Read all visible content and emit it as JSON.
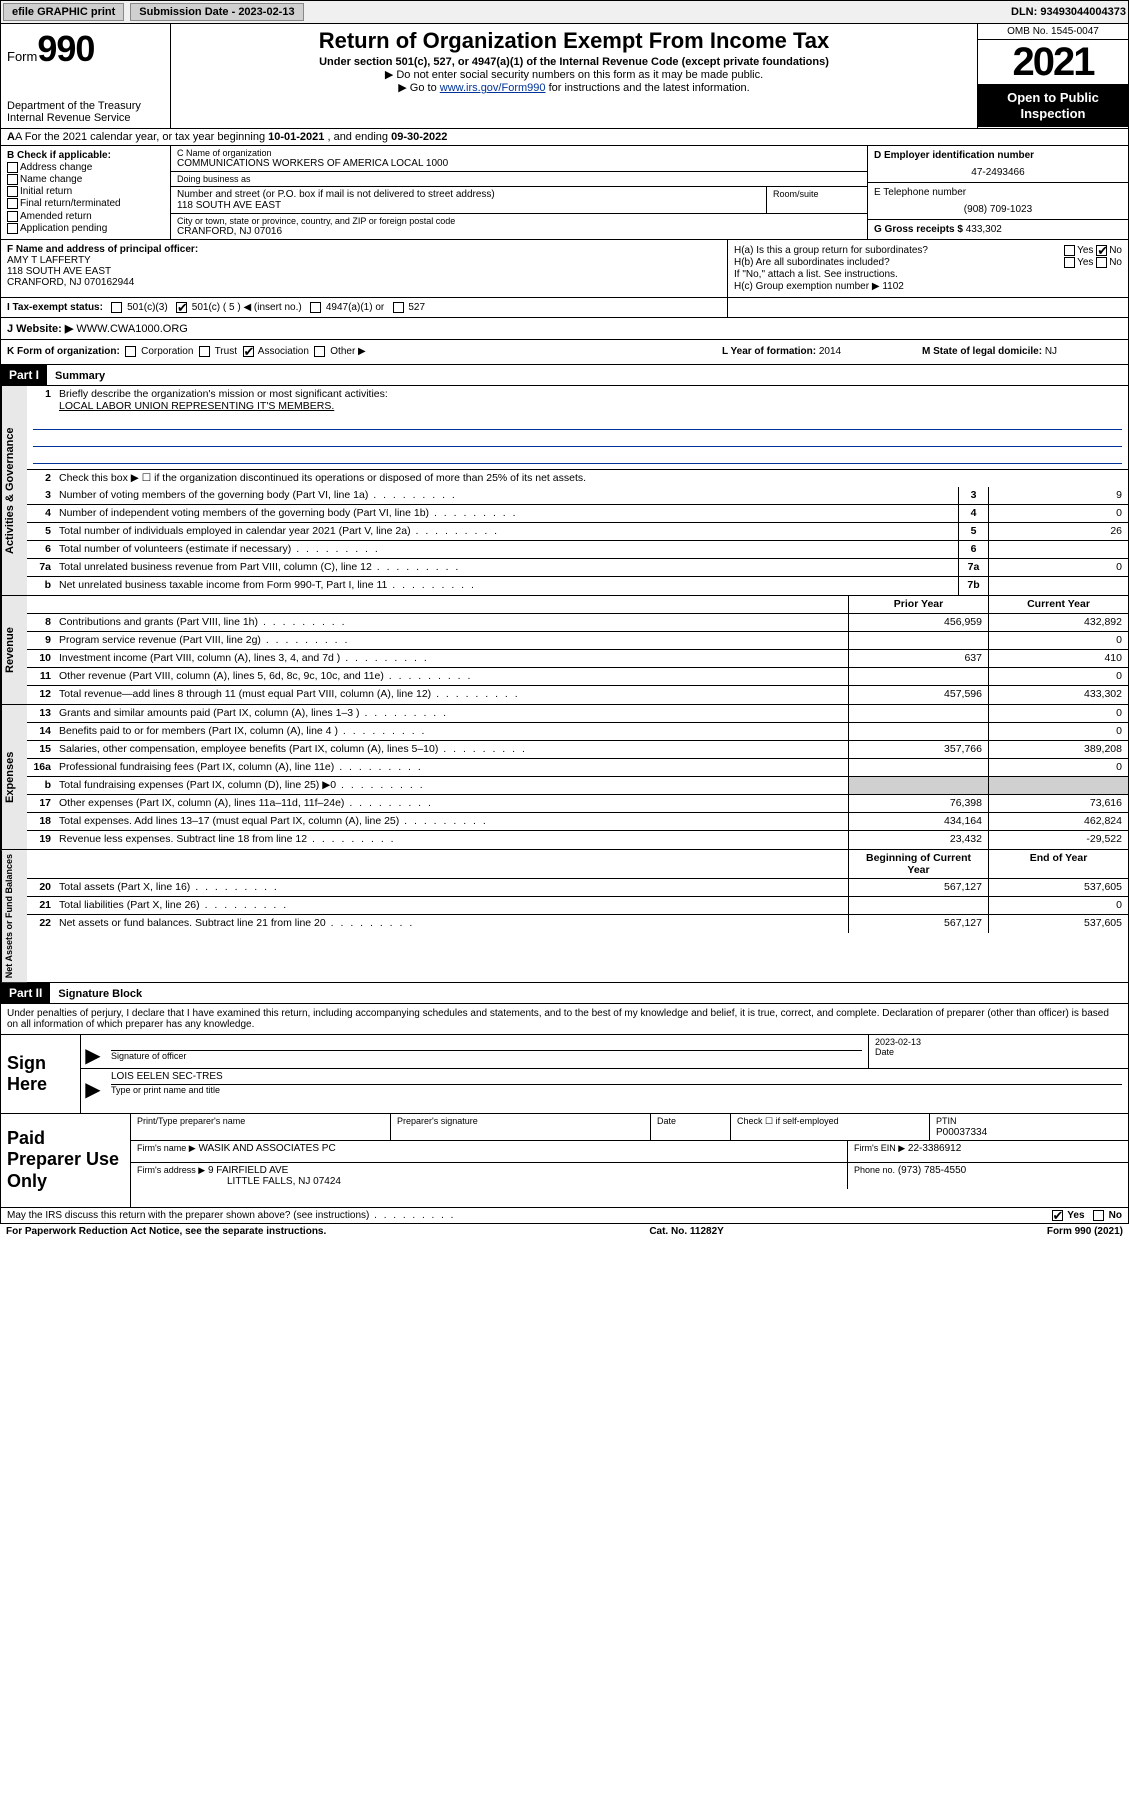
{
  "topbar": {
    "efile": "efile GRAPHIC print",
    "sub_label": "Submission Date - 2023-02-13",
    "dln": "DLN: 93493044004373"
  },
  "header": {
    "form_prefix": "Form",
    "form_no": "990",
    "dept": "Department of the Treasury",
    "irs": "Internal Revenue Service",
    "title": "Return of Organization Exempt From Income Tax",
    "sub1": "Under section 501(c), 527, or 4947(a)(1) of the Internal Revenue Code (except private foundations)",
    "sub2": "▶ Do not enter social security numbers on this form as it may be made public.",
    "sub3_pre": "▶ Go to ",
    "sub3_link": "www.irs.gov/Form990",
    "sub3_post": " for instructions and the latest information.",
    "omb": "OMB No. 1545-0047",
    "year": "2021",
    "open1": "Open to Public",
    "open2": "Inspection"
  },
  "rowA": {
    "text_pre": "A For the 2021 calendar year, or tax year beginning ",
    "begin": "10-01-2021",
    "mid": " , and ending ",
    "end": "09-30-2022"
  },
  "colB": {
    "hdr": "B Check if applicable:",
    "opts": [
      "Address change",
      "Name change",
      "Initial return",
      "Final return/terminated",
      "Amended return",
      "Application pending"
    ]
  },
  "colC": {
    "name_lbl": "C Name of organization",
    "name": "COMMUNICATIONS WORKERS OF AMERICA LOCAL 1000",
    "dba_lbl": "Doing business as",
    "dba": "",
    "street_lbl": "Number and street (or P.O. box if mail is not delivered to street address)",
    "street": "118 SOUTH AVE EAST",
    "room_lbl": "Room/suite",
    "city_lbl": "City or town, state or province, country, and ZIP or foreign postal code",
    "city": "CRANFORD, NJ  07016"
  },
  "colD": {
    "lbl": "D Employer identification number",
    "val": "47-2493466"
  },
  "colE": {
    "lbl": "E Telephone number",
    "val": "(908) 709-1023"
  },
  "colG": {
    "lbl": "G Gross receipts $ ",
    "val": "433,302"
  },
  "colF": {
    "lbl": "F Name and address of principal officer:",
    "name": "AMY T LAFFERTY",
    "addr1": "118 SOUTH AVE EAST",
    "addr2": "CRANFORD, NJ  070162944"
  },
  "colH": {
    "a_lbl": "H(a)  Is this a group return for subordinates?",
    "a_yes": "Yes",
    "a_no": "No",
    "b_lbl": "H(b)  Are all subordinates included?",
    "b_note": "If \"No,\" attach a list. See instructions.",
    "c_lbl": "H(c)  Group exemption number ▶",
    "c_val": "1102"
  },
  "rowI": {
    "lbl": "I   Tax-exempt status:",
    "o1": "501(c)(3)",
    "o2": "501(c) ( 5 ) ◀ (insert no.)",
    "o3": "4947(a)(1) or",
    "o4": "527"
  },
  "rowJ": {
    "lbl": "J   Website: ▶",
    "val": "WWW.CWA1000.ORG"
  },
  "rowK": {
    "lbl": "K Form of organization:",
    "o1": "Corporation",
    "o2": "Trust",
    "o3": "Association",
    "o4": "Other ▶"
  },
  "rowL": {
    "lbl": "L Year of formation: ",
    "val": "2014"
  },
  "rowM": {
    "lbl": "M State of legal domicile: ",
    "val": "NJ"
  },
  "part1": {
    "hdr": "Part I",
    "title": "Summary"
  },
  "summary": {
    "q1": "Briefly describe the organization's mission or most significant activities:",
    "mission": "LOCAL LABOR UNION REPRESENTING IT'S MEMBERS.",
    "q2": "Check this box ▶ ☐  if the organization discontinued its operations or disposed of more than 25% of its net assets.",
    "lines_gov": [
      {
        "n": "3",
        "d": "Number of voting members of the governing body (Part VI, line 1a)",
        "box": "3",
        "v": "9"
      },
      {
        "n": "4",
        "d": "Number of independent voting members of the governing body (Part VI, line 1b)",
        "box": "4",
        "v": "0"
      },
      {
        "n": "5",
        "d": "Total number of individuals employed in calendar year 2021 (Part V, line 2a)",
        "box": "5",
        "v": "26"
      },
      {
        "n": "6",
        "d": "Total number of volunteers (estimate if necessary)",
        "box": "6",
        "v": ""
      },
      {
        "n": "7a",
        "d": "Total unrelated business revenue from Part VIII, column (C), line 12",
        "box": "7a",
        "v": "0"
      },
      {
        "n": "b",
        "d": "Net unrelated business taxable income from Form 990-T, Part I, line 11",
        "box": "7b",
        "v": ""
      }
    ],
    "hdr_prior": "Prior Year",
    "hdr_current": "Current Year",
    "lines_rev": [
      {
        "n": "8",
        "d": "Contributions and grants (Part VIII, line 1h)",
        "p": "456,959",
        "c": "432,892"
      },
      {
        "n": "9",
        "d": "Program service revenue (Part VIII, line 2g)",
        "p": "",
        "c": "0"
      },
      {
        "n": "10",
        "d": "Investment income (Part VIII, column (A), lines 3, 4, and 7d )",
        "p": "637",
        "c": "410"
      },
      {
        "n": "11",
        "d": "Other revenue (Part VIII, column (A), lines 5, 6d, 8c, 9c, 10c, and 11e)",
        "p": "",
        "c": "0"
      },
      {
        "n": "12",
        "d": "Total revenue—add lines 8 through 11 (must equal Part VIII, column (A), line 12)",
        "p": "457,596",
        "c": "433,302"
      }
    ],
    "lines_exp": [
      {
        "n": "13",
        "d": "Grants and similar amounts paid (Part IX, column (A), lines 1–3 )",
        "p": "",
        "c": "0"
      },
      {
        "n": "14",
        "d": "Benefits paid to or for members (Part IX, column (A), line 4 )",
        "p": "",
        "c": "0"
      },
      {
        "n": "15",
        "d": "Salaries, other compensation, employee benefits (Part IX, column (A), lines 5–10)",
        "p": "357,766",
        "c": "389,208"
      },
      {
        "n": "16a",
        "d": "Professional fundraising fees (Part IX, column (A), line 11e)",
        "p": "",
        "c": "0"
      },
      {
        "n": "b",
        "d": "Total fundraising expenses (Part IX, column (D), line 25) ▶0",
        "p": "SHADE",
        "c": "SHADE"
      },
      {
        "n": "17",
        "d": "Other expenses (Part IX, column (A), lines 11a–11d, 11f–24e)",
        "p": "76,398",
        "c": "73,616"
      },
      {
        "n": "18",
        "d": "Total expenses. Add lines 13–17 (must equal Part IX, column (A), line 25)",
        "p": "434,164",
        "c": "462,824"
      },
      {
        "n": "19",
        "d": "Revenue less expenses. Subtract line 18 from line 12",
        "p": "23,432",
        "c": "-29,522"
      }
    ],
    "hdr_boy": "Beginning of Current Year",
    "hdr_eoy": "End of Year",
    "lines_net": [
      {
        "n": "20",
        "d": "Total assets (Part X, line 16)",
        "p": "567,127",
        "c": "537,605"
      },
      {
        "n": "21",
        "d": "Total liabilities (Part X, line 26)",
        "p": "",
        "c": "0"
      },
      {
        "n": "22",
        "d": "Net assets or fund balances. Subtract line 21 from line 20",
        "p": "567,127",
        "c": "537,605"
      }
    ]
  },
  "side_labels": {
    "gov": "Activities & Governance",
    "rev": "Revenue",
    "exp": "Expenses",
    "net": "Net Assets or Fund Balances"
  },
  "part2": {
    "hdr": "Part II",
    "title": "Signature Block"
  },
  "sig_intro": "Under penalties of perjury, I declare that I have examined this return, including accompanying schedules and statements, and to the best of my knowledge and belief, it is true, correct, and complete. Declaration of preparer (other than officer) is based on all information of which preparer has any knowledge.",
  "sign": {
    "here": "Sign Here",
    "sig_lbl": "Signature of officer",
    "date_lbl": "Date",
    "date_val": "2023-02-13",
    "name_val": "LOIS EELEN  SEC-TRES",
    "name_lbl": "Type or print name and title"
  },
  "prep": {
    "title": "Paid Preparer Use Only",
    "r1": {
      "c1": "Print/Type preparer's name",
      "c2": "Preparer's signature",
      "c3": "Date",
      "c4a": "Check ☐ if self-employed",
      "c4b": "PTIN",
      "c4c": "P00037334"
    },
    "r2": {
      "lbl": "Firm's name    ▶",
      "val": "WASIK AND ASSOCIATES PC",
      "ein_lbl": "Firm's EIN ▶",
      "ein": "22-3386912"
    },
    "r3": {
      "lbl": "Firm's address ▶",
      "val1": "9 FAIRFIELD AVE",
      "val2": "LITTLE FALLS, NJ  07424",
      "ph_lbl": "Phone no.",
      "ph": "(973) 785-4550"
    }
  },
  "bottom": {
    "q": "May the IRS discuss this return with the preparer shown above? (see instructions)",
    "yes": "Yes",
    "no": "No"
  },
  "foot": {
    "l": "For Paperwork Reduction Act Notice, see the separate instructions.",
    "m": "Cat. No. 11282Y",
    "r": "Form 990 (2021)"
  }
}
